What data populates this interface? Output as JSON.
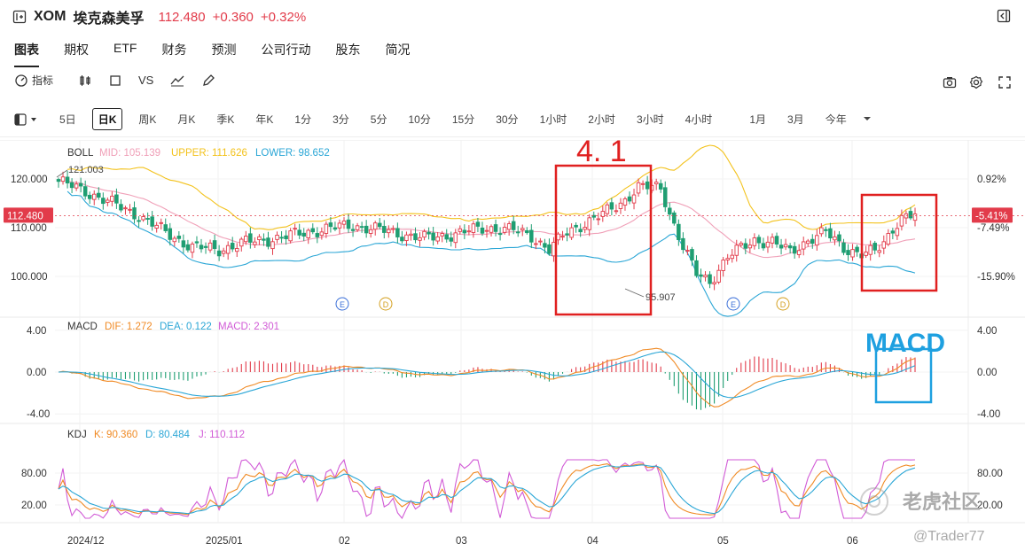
{
  "header": {
    "symbol": "XOM",
    "name": "埃克森美孚",
    "price": "112.480",
    "change": "+0.360",
    "change_pct": "+0.32%"
  },
  "tabs": [
    {
      "label": "图表",
      "active": true
    },
    {
      "label": "期权"
    },
    {
      "label": "ETF"
    },
    {
      "label": "财务"
    },
    {
      "label": "预测"
    },
    {
      "label": "公司行动"
    },
    {
      "label": "股东"
    },
    {
      "label": "简况"
    }
  ],
  "toolbar": {
    "indicator_label": "指标",
    "vs_label": "VS"
  },
  "periods": [
    "5日",
    "日K",
    "周K",
    "月K",
    "季K",
    "年K",
    "1分",
    "3分",
    "5分",
    "10分",
    "15分",
    "30分",
    "1小时",
    "2小时",
    "3小时",
    "4小时",
    "1月",
    "3月",
    "今年"
  ],
  "periods_active": "日K",
  "boll": {
    "label": "BOLL",
    "mid": "MID: 105.139",
    "upper": "UPPER: 111.626",
    "lower": "LOWER: 98.652"
  },
  "macd": {
    "label": "MACD",
    "dif": "DIF: 1.272",
    "dea": "DEA: 0.122",
    "macd": "MACD: 2.301"
  },
  "kdj": {
    "label": "KDJ",
    "k": "K: 90.360",
    "d": "D: 80.484",
    "j": "J: 110.112"
  },
  "price_axis": [
    "120.000",
    "110.000",
    "100.000"
  ],
  "current_price_tag": "112.480",
  "pct_axis": [
    "0.92%",
    "-5.41%",
    "-7.49%",
    "-15.90%"
  ],
  "high_marker": "121.003",
  "low_marker": "95.907",
  "macd_axis": [
    "4.00",
    "0.00",
    "-4.00"
  ],
  "kdj_axis": [
    "80.00",
    "20.00"
  ],
  "time_axis": [
    "2024/12",
    "2025/01",
    "02",
    "03",
    "04",
    "05",
    "06"
  ],
  "event_markers": [
    "E",
    "D",
    "E",
    "D"
  ],
  "annotation_box1_label": "4. 1",
  "annotation_box2_label": "MACD",
  "watermark_brand": "老虎社区",
  "watermark_user": "@Trader77",
  "colors": {
    "up": "#e23b4a",
    "down": "#1f9e72",
    "mid": "#f0a0b8",
    "upper": "#f3c21c",
    "lower": "#2aa6d6",
    "dif": "#f08a24",
    "dea": "#2aa6d6",
    "j": "#d15ad6",
    "annotation_red": "#e02020",
    "annotation_blue": "#1ea0e0"
  }
}
